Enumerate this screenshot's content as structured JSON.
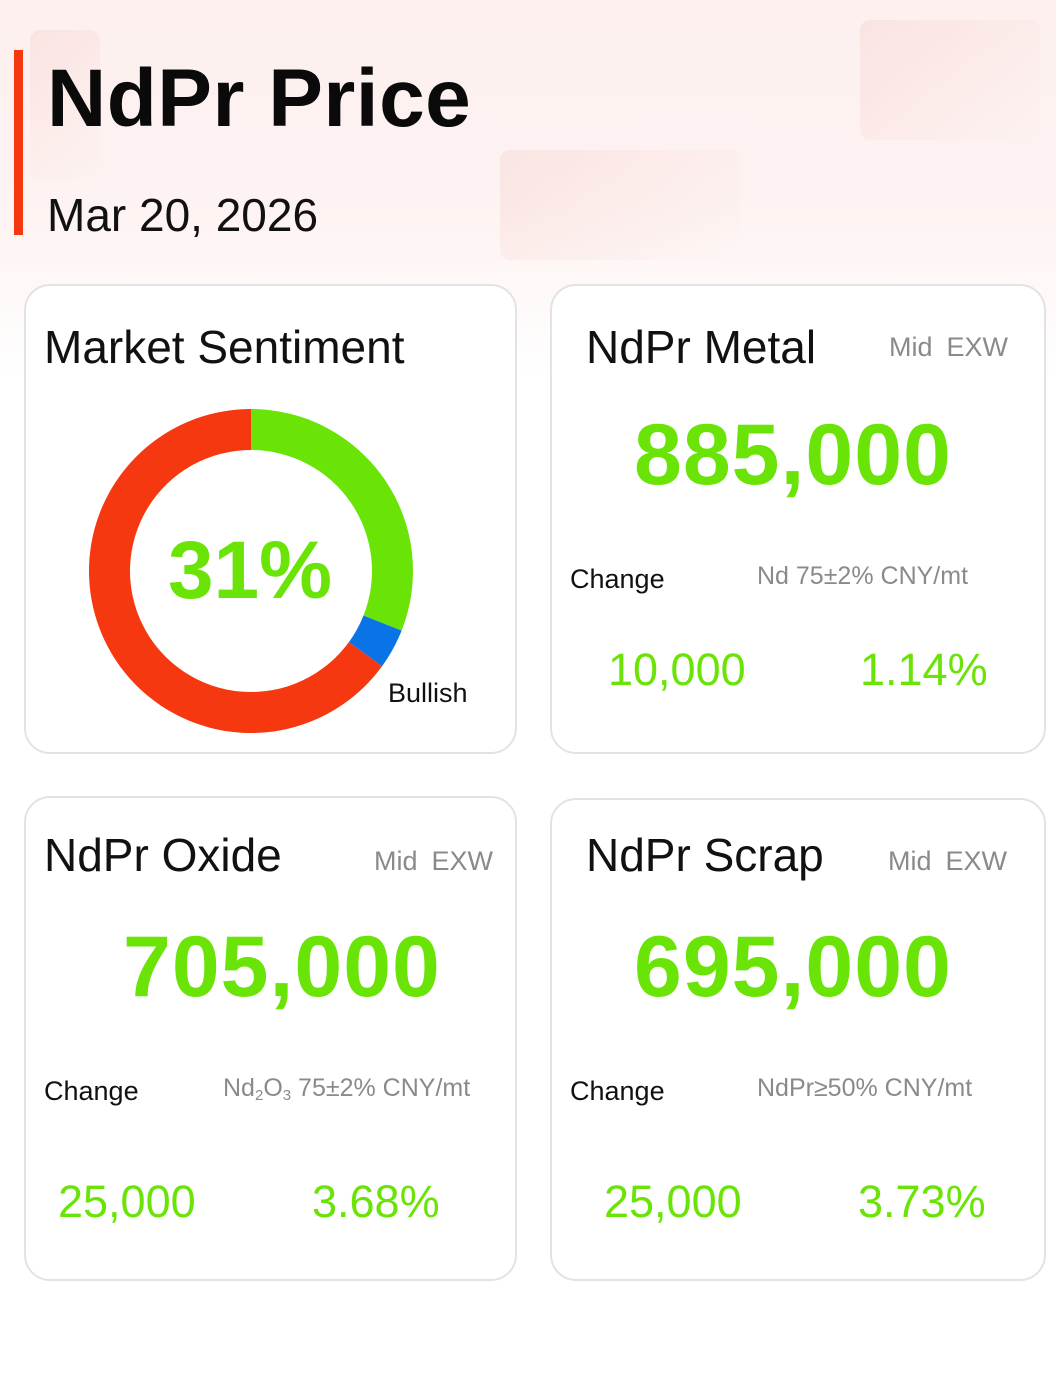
{
  "header": {
    "title": "NdPr Price",
    "date": "Mar 20, 2026"
  },
  "colors": {
    "accent": "#f5380f",
    "positive": "#6ae307",
    "bearish": "#f5380f",
    "neutral": "#0a74e6",
    "muted_text": "#8a8a8a",
    "card_border": "#e3e3e3"
  },
  "sentiment": {
    "title": "Market Sentiment",
    "value_text": "31%",
    "label": "Bullish",
    "segments": [
      {
        "name": "bullish",
        "fraction": 0.31,
        "color": "#6ae307"
      },
      {
        "name": "neutral",
        "fraction": 0.04,
        "color": "#0a74e6"
      },
      {
        "name": "bearish",
        "fraction": 0.65,
        "color": "#f5380f"
      }
    ]
  },
  "metal": {
    "title": "NdPr Metal",
    "meta_mid": "Mid",
    "meta_exw": "EXW",
    "price": "885,000",
    "change_label": "Change",
    "spec": "Nd 75±2% CNY/mt",
    "change_abs": "10,000",
    "change_pct": "1.14%"
  },
  "oxide": {
    "title": "NdPr Oxide",
    "meta_mid": "Mid",
    "meta_exw": "EXW",
    "price": "705,000",
    "change_label": "Change",
    "spec_prefix": "Nd",
    "spec_sub1": "2",
    "spec_mid": "O",
    "spec_sub2": "3",
    "spec_suffix": " 75±2% CNY/mt",
    "change_abs": "25,000",
    "change_pct": "3.68%"
  },
  "scrap": {
    "title": "NdPr Scrap",
    "meta_mid": "Mid",
    "meta_exw": "EXW",
    "price": "695,000",
    "change_label": "Change",
    "spec": "NdPr≥50% CNY/mt",
    "change_abs": "25,000",
    "change_pct": "3.73%"
  }
}
